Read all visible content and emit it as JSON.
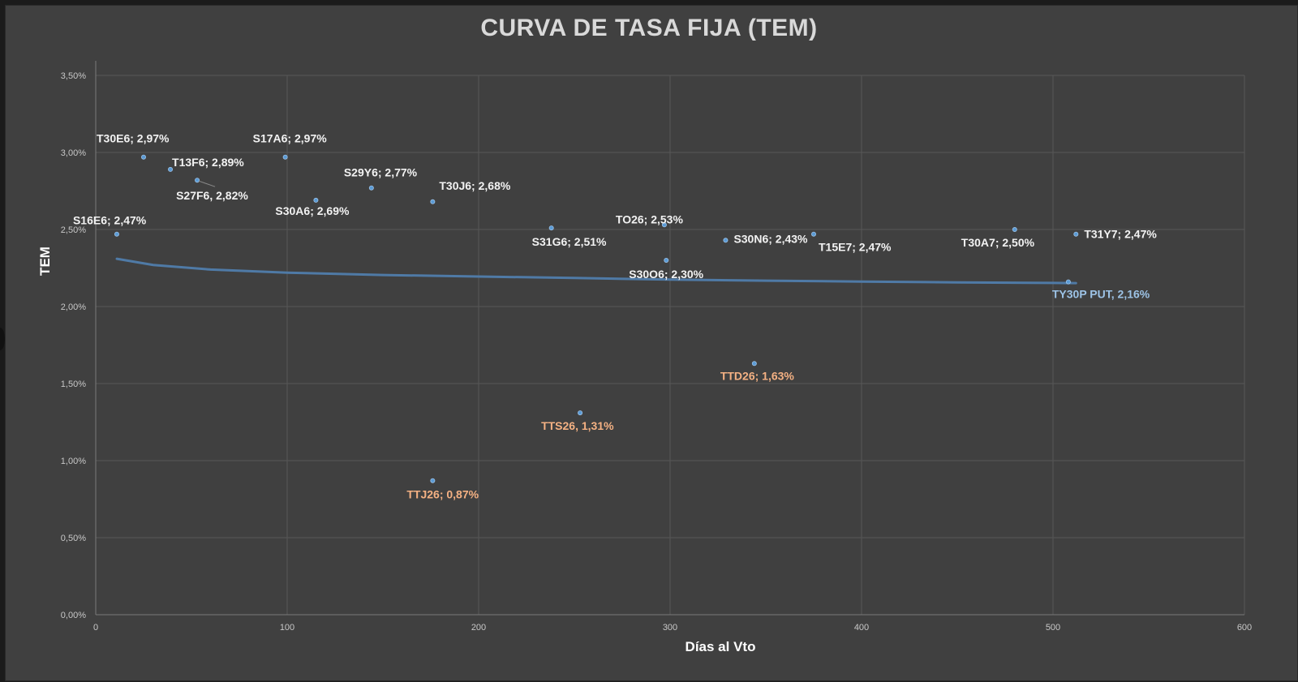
{
  "colors": {
    "background": "#404040",
    "grid": "#575757",
    "marker": "#5b9bd5",
    "trendline": "#4f7aa6",
    "label_default": "#f2f2f2",
    "label_orange": "#f4b183",
    "label_blue": "#9dc3e6"
  },
  "chart_data": {
    "type": "scatter",
    "title": "CURVA DE TASA FIJA (TEM)",
    "xlabel": "Días al Vto",
    "ylabel": "TEM",
    "xlim": [
      0,
      600
    ],
    "ylim": [
      0,
      3.5
    ],
    "x_ticks": [
      "0",
      "100",
      "200",
      "300",
      "400",
      "500",
      "600"
    ],
    "y_ticks": [
      "0,00%",
      "0,50%",
      "1,00%",
      "1,50%",
      "2,00%",
      "2,50%",
      "3,00%",
      "3,50%"
    ],
    "grid": true,
    "points": [
      {
        "x": 11,
        "y": 2.47,
        "label": "S16E6; 2,47%",
        "color": "default"
      },
      {
        "x": 25,
        "y": 2.97,
        "label": "T30E6; 2,97%",
        "color": "default"
      },
      {
        "x": 39,
        "y": 2.89,
        "label": "T13F6; 2,89%",
        "color": "default"
      },
      {
        "x": 53,
        "y": 2.82,
        "label": "S27F6, 2,82%",
        "color": "default"
      },
      {
        "x": 99,
        "y": 2.97,
        "label": "S17A6; 2,97%",
        "color": "default"
      },
      {
        "x": 115,
        "y": 2.69,
        "label": "S30A6; 2,69%",
        "color": "default"
      },
      {
        "x": 144,
        "y": 2.77,
        "label": "S29Y6; 2,77%",
        "color": "default"
      },
      {
        "x": 176,
        "y": 2.68,
        "label": "T30J6; 2,68%",
        "color": "default"
      },
      {
        "x": 238,
        "y": 2.51,
        "label": "S31G6; 2,51%",
        "color": "default"
      },
      {
        "x": 297,
        "y": 2.53,
        "label": "TO26; 2,53%",
        "color": "default"
      },
      {
        "x": 298,
        "y": 2.3,
        "label": "S30O6; 2,30%",
        "color": "default"
      },
      {
        "x": 329,
        "y": 2.43,
        "label": "S30N6; 2,43%",
        "color": "default"
      },
      {
        "x": 375,
        "y": 2.47,
        "label": "T15E7; 2,47%",
        "color": "default"
      },
      {
        "x": 480,
        "y": 2.5,
        "label": "T30A7; 2,50%",
        "color": "default"
      },
      {
        "x": 512,
        "y": 2.47,
        "label": "T31Y7; 2,47%",
        "color": "default"
      },
      {
        "x": 508,
        "y": 2.16,
        "label": "TY30P PUT, 2,16%",
        "color": "blue"
      },
      {
        "x": 176,
        "y": 0.87,
        "label": "TTJ26; 0,87%",
        "color": "orange"
      },
      {
        "x": 253,
        "y": 1.31,
        "label": "TTS26, 1,31%",
        "color": "orange"
      },
      {
        "x": 344,
        "y": 1.63,
        "label": "TTD26; 1,63%",
        "color": "orange"
      }
    ],
    "trendline": {
      "type": "logarithmic",
      "x": [
        11,
        30,
        60,
        100,
        150,
        200,
        250,
        300,
        350,
        400,
        450,
        500,
        512
      ],
      "y": [
        2.31,
        2.27,
        2.24,
        2.22,
        2.205,
        2.195,
        2.185,
        2.175,
        2.168,
        2.162,
        2.157,
        2.153,
        2.152
      ]
    }
  }
}
